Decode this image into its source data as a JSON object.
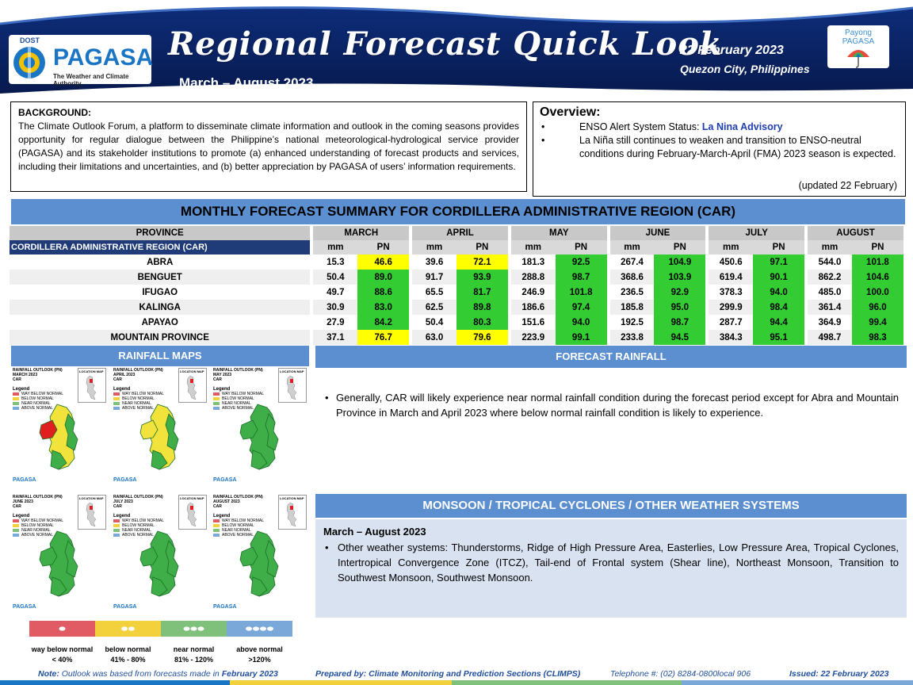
{
  "header": {
    "logo": {
      "dost": "DOST",
      "name": "PAGASA",
      "tagline": "The Weather and Climate Authority"
    },
    "title": "Regional Forecast Quick Look",
    "period": "March – August 2023",
    "date": "22 February 2023",
    "place": "Quezon City, Philippines",
    "payong": {
      "line1": "Payong",
      "line2": "PAGASA"
    },
    "colors": {
      "navy": "#0b2a6e",
      "accent": "#1a75c4"
    }
  },
  "background": {
    "heading": "BACKGROUND:",
    "text": "The Climate Outlook Forum, a platform to disseminate climate information and outlook in the coming seasons provides opportunity for regular dialogue between the Philippine’s national meteorological-hydrological service provider (PAGASA) and its stakeholder institutions to promote (a) enhanced understanding of forecast products and services, including their limitations and uncertainties, and (b) better appreciation by PAGASA of users’ information requirements."
  },
  "overview": {
    "heading": "Overview:",
    "item1_prefix": "ENSO Alert System Status: ",
    "item1_status": "La Nina Advisory",
    "item2": "La Niña still continues to weaken and transition to ENSO-neutral conditions  during February-March-April (FMA) 2023 season is expected.",
    "updated": "(updated 22 February)"
  },
  "table": {
    "title": "MONTHLY FORECAST SUMMARY FOR CORDILLERA ADMINISTRATIVE REGION (CAR)",
    "province_header": "PROVINCE",
    "region": "CORDILLERA ADMINISTRATIVE REGION (CAR)",
    "months": [
      "MARCH",
      "APRIL",
      "MAY",
      "JUNE",
      "JULY",
      "AUGUST"
    ],
    "col_mm": "mm",
    "col_pn": "PN",
    "rows": [
      {
        "province": "ABRA",
        "mm": [
          "15.3",
          "39.6",
          "181.3",
          "267.4",
          "450.6",
          "544.0"
        ],
        "pn": [
          "46.6",
          "72.1",
          "92.5",
          "104.9",
          "97.1",
          "101.8"
        ],
        "pn_class": [
          "y",
          "y",
          "g",
          "g",
          "g",
          "g"
        ]
      },
      {
        "province": "BENGUET",
        "mm": [
          "50.4",
          "91.7",
          "288.8",
          "368.6",
          "619.4",
          "862.2"
        ],
        "pn": [
          "89.0",
          "93.9",
          "98.7",
          "103.9",
          "90.1",
          "104.6"
        ],
        "pn_class": [
          "g",
          "g",
          "g",
          "g",
          "g",
          "g"
        ]
      },
      {
        "province": "IFUGAO",
        "mm": [
          "49.7",
          "65.5",
          "246.9",
          "236.5",
          "378.3",
          "485.0"
        ],
        "pn": [
          "88.6",
          "81.7",
          "101.8",
          "92.9",
          "94.0",
          "100.0"
        ],
        "pn_class": [
          "g",
          "g",
          "g",
          "g",
          "g",
          "g"
        ]
      },
      {
        "province": "KALINGA",
        "mm": [
          "30.9",
          "62.5",
          "186.6",
          "185.8",
          "299.9",
          "361.4"
        ],
        "pn": [
          "83.0",
          "89.8",
          "97.4",
          "95.0",
          "98.4",
          "96.0"
        ],
        "pn_class": [
          "g",
          "g",
          "g",
          "g",
          "g",
          "g"
        ]
      },
      {
        "province": "APAYAO",
        "mm": [
          "27.9",
          "50.4",
          "151.6",
          "192.5",
          "287.7",
          "364.9"
        ],
        "pn": [
          "84.2",
          "80.3",
          "94.0",
          "98.7",
          "94.4",
          "99.4"
        ],
        "pn_class": [
          "g",
          "g",
          "g",
          "g",
          "g",
          "g"
        ]
      },
      {
        "province": "MOUNTAIN PROVINCE",
        "mm": [
          "37.1",
          "63.0",
          "223.9",
          "233.8",
          "384.3",
          "498.7"
        ],
        "pn": [
          "76.7",
          "79.6",
          "99.1",
          "94.5",
          "95.1",
          "98.3"
        ],
        "pn_class": [
          "y",
          "y",
          "g",
          "g",
          "g",
          "g"
        ]
      }
    ]
  },
  "rainfall_maps": {
    "title": "RAINFALL MAPS",
    "maps": [
      {
        "t1": "RAINFALL OUTLOOK (PN)",
        "t2": "MARCH 2023",
        "t3": "CAR"
      },
      {
        "t1": "RAINFALL OUTLOOK (PN)",
        "t2": "APRIL 2023",
        "t3": "CAR"
      },
      {
        "t1": "RAINFALL OUTLOOK (PN)",
        "t2": "MAY 2023",
        "t3": "CAR"
      },
      {
        "t1": "RAINFALL OUTLOOK (PN)",
        "t2": "JUNE 2023",
        "t3": "CAR"
      },
      {
        "t1": "RAINFALL OUTLOOK (PN)",
        "t2": "JULY 2023",
        "t3": "CAR"
      },
      {
        "t1": "RAINFALL OUTLOOK (PN)",
        "t2": "AUGUST 2023",
        "t3": "CAR"
      }
    ],
    "legend_heading": "Legend",
    "legend_items": [
      "WAY BELOW NORMAL",
      "BELOW NORMAL",
      "NEAR NORMAL",
      "ABOVE NORMAL"
    ],
    "location_label": "LOCATION MAP",
    "brand": "PAGASA",
    "category_labels": [
      {
        "name": "way below normal",
        "range": "< 40%",
        "color": "#e05b63"
      },
      {
        "name": "below normal",
        "range": "41% -  80%",
        "color": "#f2d13c"
      },
      {
        "name": "near normal",
        "range": "81% - 120%",
        "color": "#7fc07a"
      },
      {
        "name": "above normal",
        "range": ">120%",
        "color": "#7aa8d8"
      }
    ]
  },
  "forecast_rainfall": {
    "title": "FORECAST RAINFALL",
    "text": "Generally, CAR will likely experience near normal rainfall condition during the forecast period except for Abra and Mountain Province in March and April 2023 where below normal rainfall condition is likely to experience."
  },
  "monsoon": {
    "title": "MONSOON / TROPICAL CYCLONES / OTHER WEATHER SYSTEMS",
    "period": "March – August 2023",
    "text": "Other weather systems: Thunderstorms,  Ridge of High Pressure Area,  Easterlies, Low Pressure Area, Tropical Cyclones, Intertropical Convergence Zone (ITCZ), Tail-end of Frontal system (Shear line), Northeast Monsoon, Transition to Southwest Monsoon, Southwest Monsoon."
  },
  "footer": {
    "note_label": "Note:",
    "note_text": " Outlook was based from forecasts made in ",
    "note_bold": "February 2023",
    "prepared": "Prepared by: Climate Monitoring and Prediction Sections (CLIMPS)",
    "telephone": "Telephone #: (02) 8284-0800local 906",
    "issued": "Issued: 22 February 2023"
  }
}
